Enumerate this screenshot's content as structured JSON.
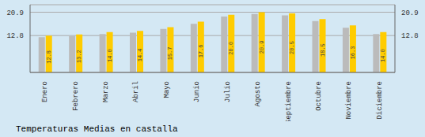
{
  "chart_data": {
    "type": "bar",
    "title": "Temperaturas Medias en castalla",
    "categories": [
      "Enero",
      "Febrero",
      "Marzo",
      "Abril",
      "Mayo",
      "Junio",
      "Julio",
      "Agosto",
      "Septiembre",
      "Octubre",
      "Noviembre",
      "Diciembre"
    ],
    "series": [
      {
        "color": "#BBBBBB",
        "values": [
          12.2,
          12.6,
          13.3,
          13.8,
          15.1,
          16.9,
          19.4,
          20.3,
          19.8,
          17.8,
          15.5,
          13.3
        ]
      },
      {
        "color": "#FFCC00",
        "values": [
          12.8,
          13.2,
          14.0,
          14.4,
          15.7,
          17.6,
          20.0,
          20.9,
          20.5,
          18.5,
          16.3,
          14.0
        ],
        "data_labels": true,
        "value_labels": [
          "12.8",
          "13.2",
          "14.0",
          "14.4",
          "15.7",
          "17.6",
          "20.0",
          "20.9",
          "20.5",
          "18.5",
          "16.3",
          "14.0"
        ]
      }
    ],
    "ylim": [
      0,
      23.5
    ],
    "yticks": [
      12.8,
      20.9
    ],
    "y2lim": [
      0,
      23.5
    ],
    "y2ticks": [
      12.8,
      20.9
    ],
    "grid": true
  }
}
